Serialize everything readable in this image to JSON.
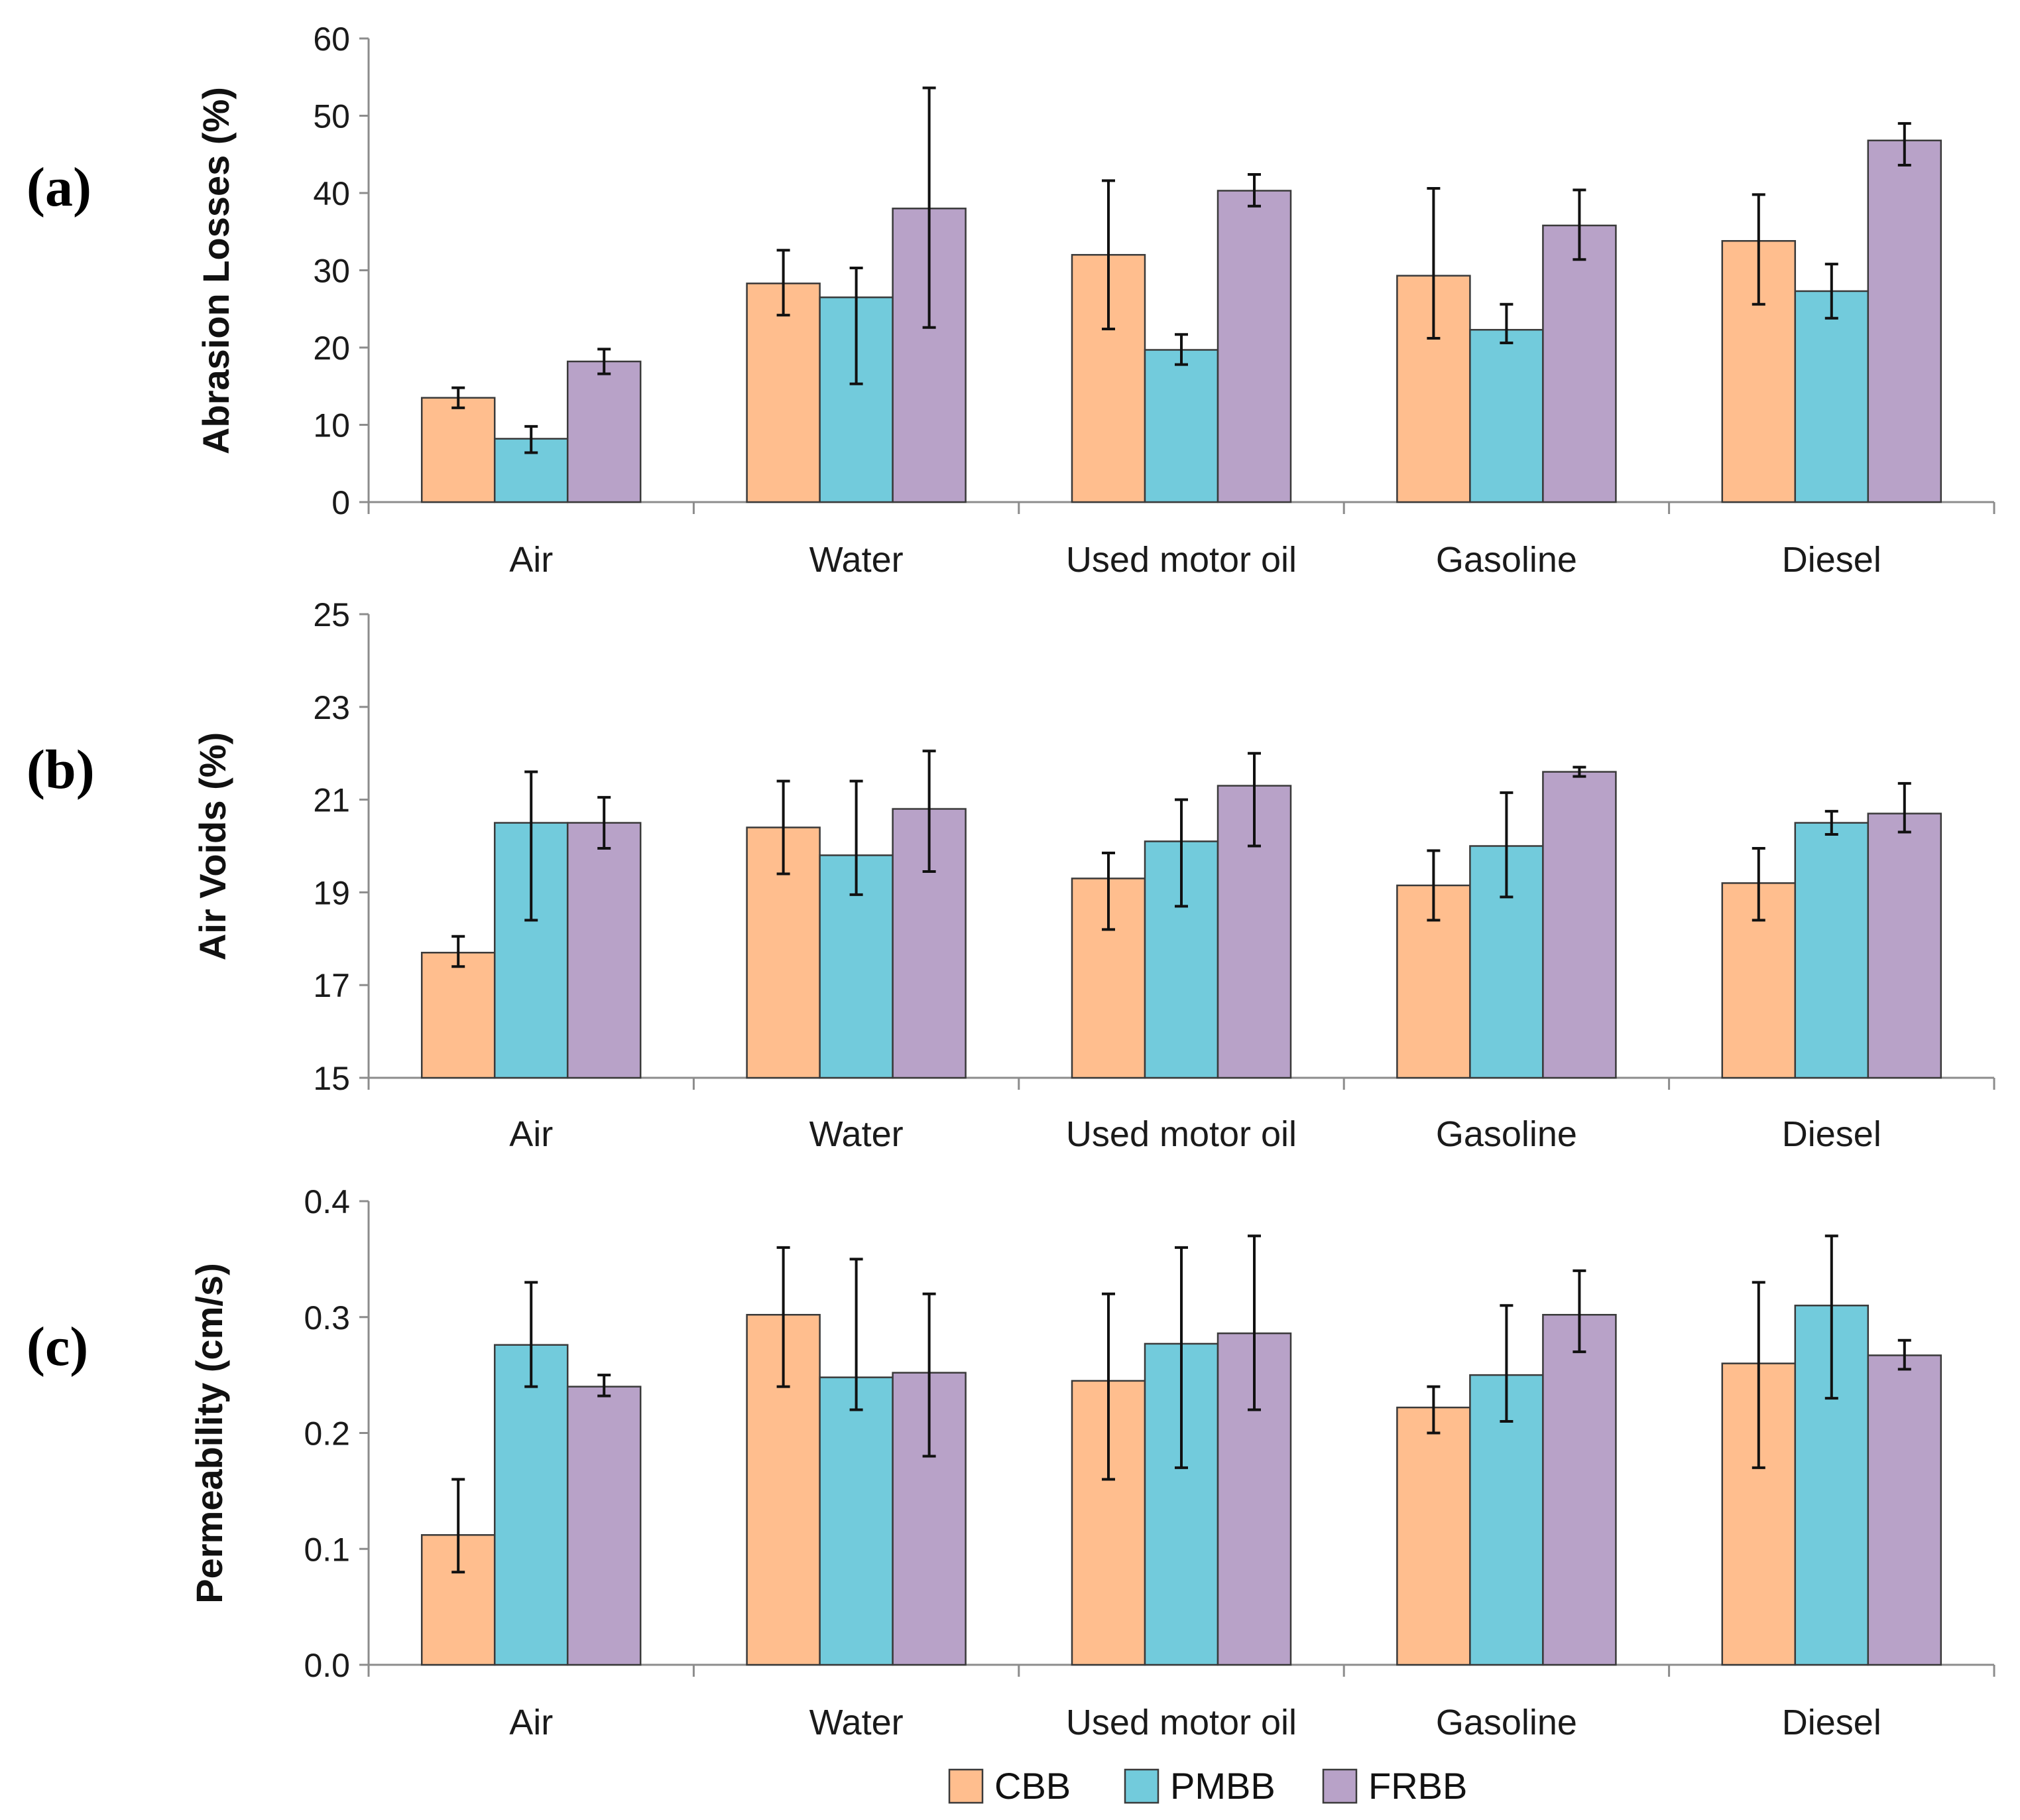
{
  "series_colors": [
    "#FFBE8E",
    "#72CBDC",
    "#B8A2C8"
  ],
  "chart_data": [
    {
      "type": "bar",
      "panel_label": "(a)",
      "ylabel": "Abrasion Losses (%)",
      "categories": [
        "Air",
        "Water",
        "Used motor oil",
        "Gasoline",
        "Diesel"
      ],
      "ylim": [
        0,
        60
      ],
      "yticks": [
        "0",
        "10",
        "20",
        "30",
        "40",
        "50",
        "60"
      ],
      "series": [
        {
          "name": "CBB",
          "values": [
            13.5,
            28.3,
            32.0,
            29.3,
            33.8
          ],
          "err_low": [
            12.2,
            24.2,
            22.4,
            21.2,
            25.6
          ],
          "err_high": [
            14.8,
            32.6,
            41.6,
            40.6,
            39.8
          ]
        },
        {
          "name": "PMBB",
          "values": [
            8.2,
            26.5,
            19.7,
            22.3,
            27.3
          ],
          "err_low": [
            6.4,
            15.3,
            17.8,
            20.6,
            23.8
          ],
          "err_high": [
            9.8,
            30.3,
            21.7,
            25.6,
            30.8
          ]
        },
        {
          "name": "FRBB",
          "values": [
            18.2,
            38.0,
            40.3,
            35.8,
            46.8
          ],
          "err_low": [
            16.6,
            22.6,
            38.3,
            31.4,
            43.6
          ],
          "err_high": [
            19.8,
            53.6,
            42.4,
            40.4,
            49.0
          ]
        }
      ]
    },
    {
      "type": "bar",
      "panel_label": "(b)",
      "ylabel": "Air Voids (%)",
      "categories": [
        "Air",
        "Water",
        "Used motor oil",
        "Gasoline",
        "Diesel"
      ],
      "ylim": [
        15,
        25
      ],
      "yticks": [
        "15",
        "17",
        "19",
        "21",
        "23",
        "25"
      ],
      "series": [
        {
          "name": "CBB",
          "values": [
            17.7,
            20.4,
            19.3,
            19.15,
            19.2
          ],
          "err_low": [
            17.4,
            19.4,
            18.2,
            18.4,
            18.4
          ],
          "err_high": [
            18.05,
            21.4,
            19.85,
            19.9,
            19.95
          ]
        },
        {
          "name": "PMBB",
          "values": [
            20.5,
            19.8,
            20.1,
            20.0,
            20.5
          ],
          "err_low": [
            18.4,
            18.95,
            18.7,
            18.9,
            20.25
          ],
          "err_high": [
            21.6,
            21.4,
            21.0,
            21.15,
            20.75
          ]
        },
        {
          "name": "FRBB",
          "values": [
            20.5,
            20.8,
            21.3,
            21.6,
            20.7
          ],
          "err_low": [
            19.95,
            19.45,
            20.0,
            21.5,
            20.3
          ],
          "err_high": [
            21.05,
            22.05,
            22.0,
            21.7,
            21.35
          ]
        }
      ]
    },
    {
      "type": "bar",
      "panel_label": "(c)",
      "ylabel": "Permeability (cm/s)",
      "categories": [
        "Air",
        "Water",
        "Used motor oil",
        "Gasoline",
        "Diesel"
      ],
      "ylim": [
        0,
        0.4
      ],
      "yticks": [
        "0.0",
        "0.1",
        "0.2",
        "0.3",
        "0.4"
      ],
      "series": [
        {
          "name": "CBB",
          "values": [
            0.112,
            0.302,
            0.245,
            0.222,
            0.26
          ],
          "err_low": [
            0.08,
            0.24,
            0.16,
            0.2,
            0.17
          ],
          "err_high": [
            0.16,
            0.36,
            0.32,
            0.24,
            0.33
          ]
        },
        {
          "name": "PMBB",
          "values": [
            0.276,
            0.248,
            0.277,
            0.25,
            0.31
          ],
          "err_low": [
            0.24,
            0.22,
            0.17,
            0.21,
            0.23
          ],
          "err_high": [
            0.33,
            0.35,
            0.36,
            0.31,
            0.37
          ]
        },
        {
          "name": "FRBB",
          "values": [
            0.24,
            0.252,
            0.286,
            0.302,
            0.267
          ],
          "err_low": [
            0.232,
            0.18,
            0.22,
            0.27,
            0.255
          ],
          "err_high": [
            0.25,
            0.32,
            0.37,
            0.34,
            0.28
          ]
        }
      ]
    }
  ],
  "legend": [
    "CBB",
    "PMBB",
    "FRBB"
  ]
}
